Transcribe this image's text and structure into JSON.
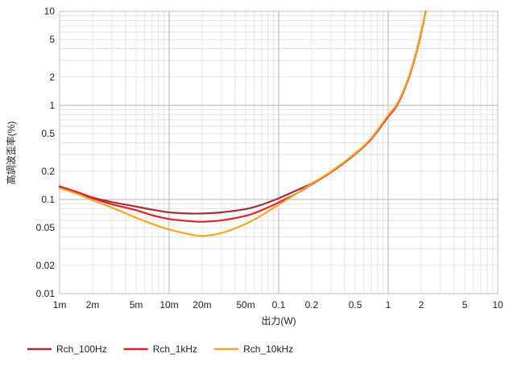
{
  "chart_data": {
    "type": "line",
    "title": "",
    "xlabel": "出力(W)",
    "ylabel": "高調波歪率(%)",
    "x_scale": "log",
    "y_scale": "log",
    "xlim": [
      0.001,
      10
    ],
    "ylim": [
      0.01,
      10
    ],
    "grid": true,
    "legend_position": "bottom-left",
    "x_ticks": [
      {
        "value": 0.001,
        "label": "1m"
      },
      {
        "value": 0.002,
        "label": "2m"
      },
      {
        "value": 0.005,
        "label": "5m"
      },
      {
        "value": 0.01,
        "label": "10m"
      },
      {
        "value": 0.02,
        "label": "20m"
      },
      {
        "value": 0.05,
        "label": "50m"
      },
      {
        "value": 0.1,
        "label": "0.1"
      },
      {
        "value": 0.2,
        "label": "0.2"
      },
      {
        "value": 0.5,
        "label": "0.5"
      },
      {
        "value": 1,
        "label": "1"
      },
      {
        "value": 2,
        "label": "2"
      },
      {
        "value": 5,
        "label": "5"
      },
      {
        "value": 10,
        "label": "10"
      }
    ],
    "y_ticks": [
      {
        "value": 0.01,
        "label": "0.01"
      },
      {
        "value": 0.02,
        "label": "0.02"
      },
      {
        "value": 0.05,
        "label": "0.05"
      },
      {
        "value": 0.1,
        "label": "0.1"
      },
      {
        "value": 0.2,
        "label": "0.2"
      },
      {
        "value": 0.5,
        "label": "0.5"
      },
      {
        "value": 1,
        "label": "1"
      },
      {
        "value": 2,
        "label": "2"
      },
      {
        "value": 5,
        "label": "5"
      },
      {
        "value": 10,
        "label": "10"
      }
    ],
    "series": [
      {
        "name": "Rch_100Hz",
        "color": "#a0303c",
        "points": [
          [
            0.001,
            0.138
          ],
          [
            0.0015,
            0.118
          ],
          [
            0.002,
            0.105
          ],
          [
            0.003,
            0.094
          ],
          [
            0.005,
            0.084
          ],
          [
            0.007,
            0.078
          ],
          [
            0.01,
            0.073
          ],
          [
            0.015,
            0.071
          ],
          [
            0.02,
            0.071
          ],
          [
            0.03,
            0.073
          ],
          [
            0.05,
            0.079
          ],
          [
            0.07,
            0.088
          ],
          [
            0.1,
            0.103
          ],
          [
            0.15,
            0.127
          ],
          [
            0.2,
            0.148
          ],
          [
            0.3,
            0.195
          ],
          [
            0.5,
            0.305
          ],
          [
            0.7,
            0.44
          ],
          [
            1.0,
            0.76
          ],
          [
            1.2,
            1.0
          ],
          [
            1.5,
            1.8
          ],
          [
            1.8,
            3.6
          ],
          [
            2.0,
            6.0
          ],
          [
            2.2,
            10.0
          ]
        ]
      },
      {
        "name": "Rch_1kHz",
        "color": "#e0222c",
        "points": [
          [
            0.001,
            0.136
          ],
          [
            0.0015,
            0.117
          ],
          [
            0.002,
            0.103
          ],
          [
            0.003,
            0.089
          ],
          [
            0.005,
            0.077
          ],
          [
            0.007,
            0.068
          ],
          [
            0.01,
            0.062
          ],
          [
            0.015,
            0.059
          ],
          [
            0.02,
            0.058
          ],
          [
            0.03,
            0.06
          ],
          [
            0.05,
            0.067
          ],
          [
            0.07,
            0.077
          ],
          [
            0.1,
            0.093
          ],
          [
            0.15,
            0.118
          ],
          [
            0.2,
            0.145
          ],
          [
            0.3,
            0.195
          ],
          [
            0.5,
            0.305
          ],
          [
            0.7,
            0.44
          ],
          [
            1.0,
            0.77
          ],
          [
            1.2,
            1.0
          ],
          [
            1.5,
            1.8
          ],
          [
            1.8,
            3.6
          ],
          [
            2.0,
            6.0
          ],
          [
            2.2,
            10.0
          ]
        ]
      },
      {
        "name": "Rch_10kHz",
        "color": "#f5a623",
        "points": [
          [
            0.001,
            0.132
          ],
          [
            0.0015,
            0.113
          ],
          [
            0.002,
            0.098
          ],
          [
            0.003,
            0.082
          ],
          [
            0.005,
            0.064
          ],
          [
            0.007,
            0.055
          ],
          [
            0.01,
            0.048
          ],
          [
            0.015,
            0.043
          ],
          [
            0.02,
            0.041
          ],
          [
            0.03,
            0.044
          ],
          [
            0.05,
            0.055
          ],
          [
            0.07,
            0.068
          ],
          [
            0.1,
            0.088
          ],
          [
            0.15,
            0.118
          ],
          [
            0.2,
            0.147
          ],
          [
            0.3,
            0.198
          ],
          [
            0.5,
            0.31
          ],
          [
            0.7,
            0.45
          ],
          [
            1.0,
            0.79
          ],
          [
            1.2,
            1.03
          ],
          [
            1.5,
            1.85
          ],
          [
            1.8,
            3.7
          ],
          [
            2.0,
            6.2
          ],
          [
            2.2,
            10.0
          ]
        ]
      }
    ]
  }
}
